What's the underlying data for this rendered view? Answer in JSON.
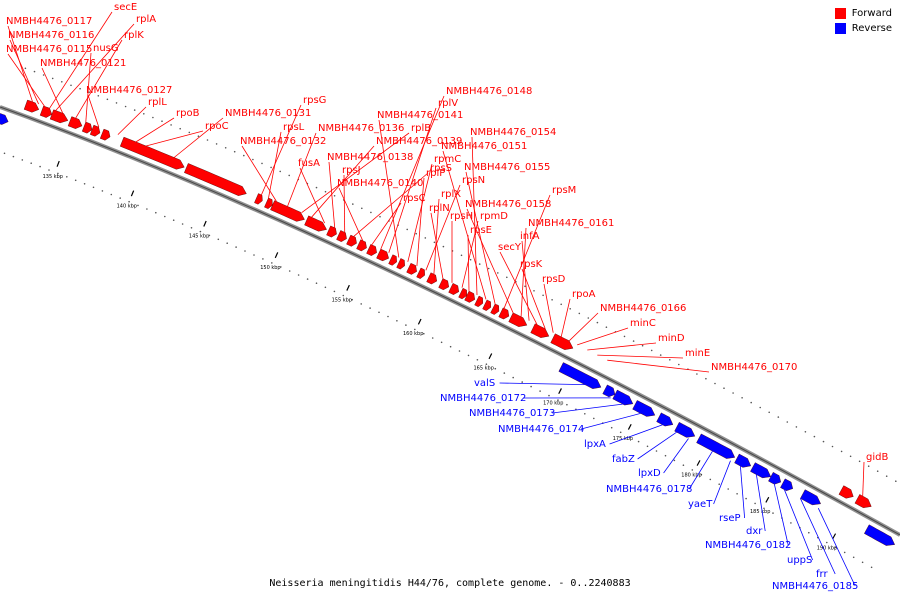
{
  "caption": "Neisseria meningitidis H44/76, complete genome. - 0..2240883",
  "legend": [
    {
      "label": "Forward",
      "color": "#ff0000"
    },
    {
      "label": "Reverse",
      "color": "#0000ff"
    }
  ],
  "colors": {
    "forward": "#ff0000",
    "reverse": "#0000ff",
    "backbone": "#909090",
    "tick": "#000000"
  },
  "kbp_ticks": [
    "135 kbp",
    "140 kbp",
    "145 kbp",
    "150 kbp",
    "155 kbp",
    "160 kbp",
    "165 kbp",
    "170 kbp",
    "175 kbp",
    "180 kbp",
    "185 kbp",
    "190 kbp"
  ],
  "forward_genes": [
    "secE",
    "rplA",
    "NMBH4476_0117",
    "rplK",
    "NMBH4476_0116",
    "nusG",
    "NMBH4476_0115",
    "NMBH4476_0121",
    "NMBH4476_0127",
    "rplL",
    "rpoB",
    "rpoC",
    "NMBH4476_0131",
    "rpsG",
    "rpsL",
    "NMBH4476_0132",
    "NMBH4476_0136",
    "rplB",
    "NMBH4476_0139",
    "fusA",
    "NMBH4476_0138",
    "rpsJ",
    "rpsS",
    "NMBH4476_0140",
    "rpsC",
    "NMBH4476_0148",
    "rplV",
    "NMBH4476_0141",
    "rpmC",
    "rplP",
    "rpsN",
    "rplX",
    "rplN",
    "rpsH",
    "rpmD",
    "rpsE",
    "NMBH4476_0154",
    "NMBH4476_0151",
    "NMBH4476_0155",
    "rpsM",
    "NMBH4476_0158",
    "NMBH4476_0161",
    "infA",
    "secY",
    "rpsK",
    "rpsD",
    "rpoA",
    "NMBH4476_0166",
    "minC",
    "minD",
    "minE",
    "NMBH4476_0170",
    "gidB"
  ],
  "reverse_genes": [
    "valS",
    "NMBH4476_0172",
    "NMBH4476_0173",
    "NMBH4476_0174",
    "lpxA",
    "fabZ",
    "lpxD",
    "NMBH4476_0178",
    "yaeT",
    "rseP",
    "dxr",
    "NMBH4476_0182",
    "uppS",
    "frr",
    "NMBH4476_0185"
  ]
}
